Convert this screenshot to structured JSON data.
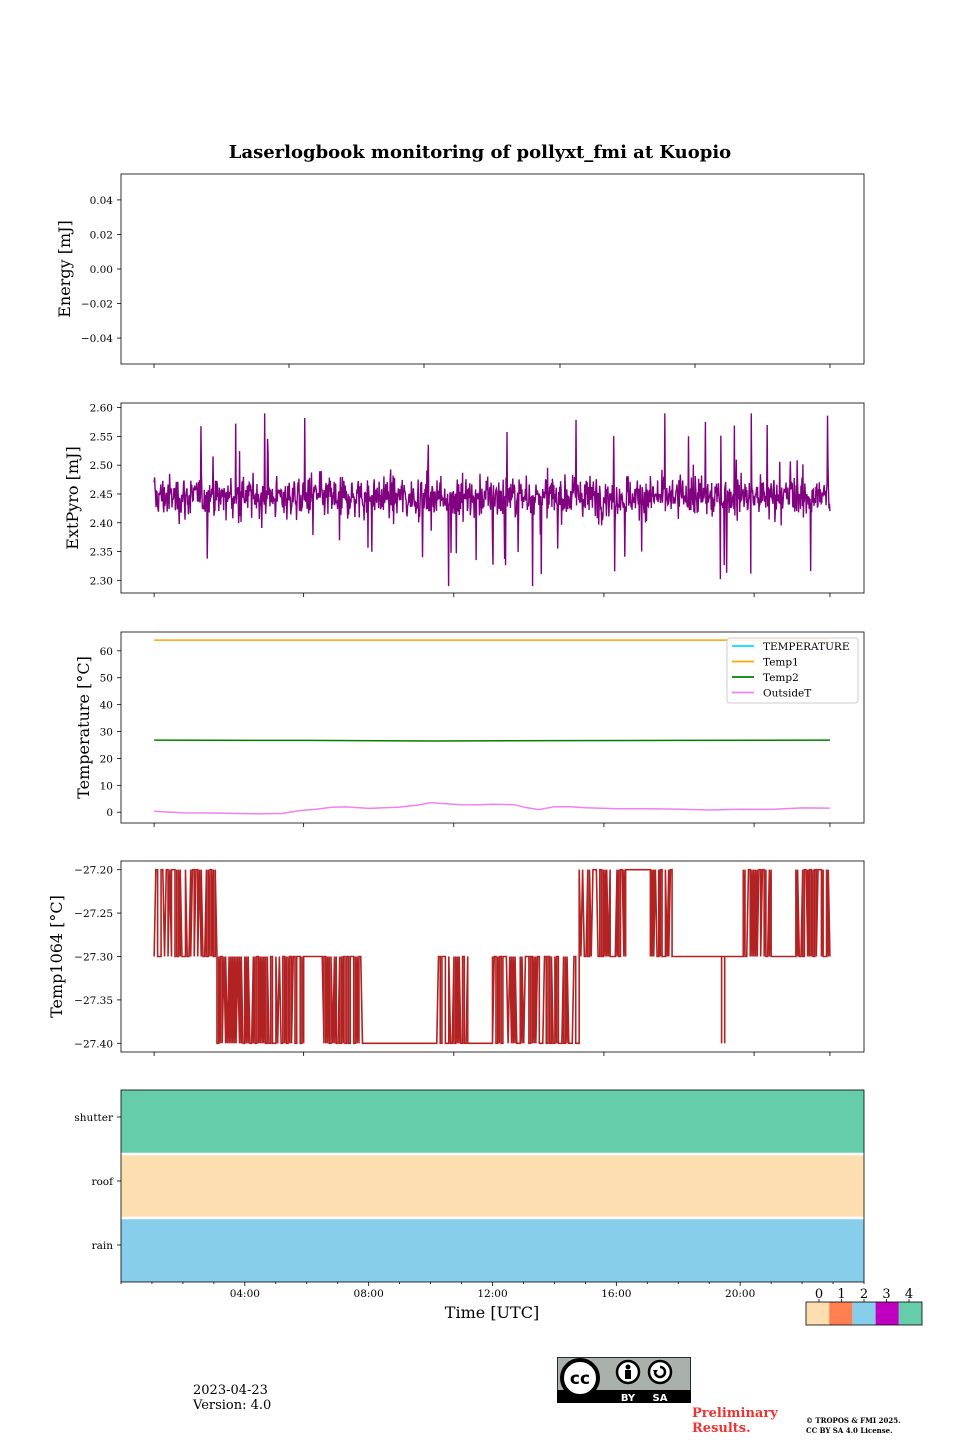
{
  "chart_data": {
    "title": "Laserlogbook monitoring of pollyxt_fmi at Kuopio",
    "xlabel": "Time [UTC]",
    "x_range_hours": [
      0,
      24
    ],
    "x_ticks": [
      "04:00",
      "08:00",
      "12:00",
      "16:00",
      "20:00"
    ],
    "panels": [
      {
        "id": "energy",
        "type": "line",
        "ylabel": "Energy [mJ]",
        "ylim": [
          -0.055,
          0.055
        ],
        "yticks": [
          0.04,
          0.02,
          0.0,
          -0.02,
          -0.04
        ],
        "ytick_labels": [
          "0.04",
          "0.02",
          "0.00",
          "−0.02",
          "−0.04"
        ],
        "series": []
      },
      {
        "id": "extpyro",
        "type": "line",
        "ylabel": "ExtPyro [mJ]",
        "ylim": [
          2.278,
          2.608
        ],
        "yticks": [
          2.6,
          2.55,
          2.5,
          2.45,
          2.4,
          2.35,
          2.3
        ],
        "ytick_labels": [
          "2.60",
          "2.55",
          "2.50",
          "2.45",
          "2.40",
          "2.35",
          "2.30"
        ],
        "series": [
          {
            "name": "ExtPyro",
            "color": "#800080",
            "kind": "noisy",
            "t_start": 1.07,
            "t_end": 22.9,
            "mean": 2.445,
            "sd": 0.035,
            "min": 2.29,
            "max": 2.59
          }
        ]
      },
      {
        "id": "temperature",
        "type": "line",
        "ylabel": "Temperature [°C]",
        "ylim": [
          -4,
          67
        ],
        "yticks": [
          60,
          50,
          40,
          30,
          20,
          10,
          0
        ],
        "ytick_labels": [
          "60",
          "50",
          "40",
          "30",
          "20",
          "10",
          "0"
        ],
        "legend_position": "upper right",
        "series": [
          {
            "name": "TEMPERATURE",
            "color": "#00e5ee",
            "points": []
          },
          {
            "name": "Temp1",
            "color": "#ffa500",
            "points": [
              [
                1.07,
                64
              ],
              [
                22.9,
                64
              ]
            ]
          },
          {
            "name": "Temp2",
            "color": "#008000",
            "points": [
              [
                1.07,
                26.8
              ],
              [
                6,
                26.7
              ],
              [
                10,
                26.5
              ],
              [
                14,
                26.6
              ],
              [
                18,
                26.7
              ],
              [
                22.9,
                26.8
              ]
            ]
          },
          {
            "name": "OutsideT",
            "color": "#ee82ee",
            "points": [
              [
                1.07,
                0.3
              ],
              [
                2,
                -0.1
              ],
              [
                3,
                -0.3
              ],
              [
                4,
                -0.5
              ],
              [
                4.5,
                -0.7
              ],
              [
                5.2,
                -0.3
              ],
              [
                5.8,
                0.7
              ],
              [
                6.3,
                0.9
              ],
              [
                6.8,
                1.6
              ],
              [
                7.3,
                2.1
              ],
              [
                8,
                1.5
              ],
              [
                9,
                1.9
              ],
              [
                9.6,
                2.6
              ],
              [
                10,
                3.3
              ],
              [
                10.5,
                3.1
              ],
              [
                11,
                2.6
              ],
              [
                11.5,
                2.8
              ],
              [
                12,
                2.9
              ],
              [
                12.7,
                2.6
              ],
              [
                13.1,
                1.7
              ],
              [
                13.5,
                1.1
              ],
              [
                14,
                1.8
              ],
              [
                14.5,
                2.1
              ],
              [
                15,
                1.7
              ],
              [
                16,
                1.3
              ],
              [
                17,
                1.2
              ],
              [
                18,
                1.1
              ],
              [
                19,
                1.0
              ],
              [
                20,
                0.9
              ],
              [
                21,
                1.1
              ],
              [
                22,
                1.4
              ],
              [
                22.9,
                1.5
              ]
            ]
          }
        ]
      },
      {
        "id": "temp1064",
        "type": "line",
        "ylabel": "Temp1064 [°C]",
        "ylim": [
          -27.41,
          -27.19
        ],
        "yticks": [
          -27.2,
          -27.25,
          -27.3,
          -27.35,
          -27.4
        ],
        "ytick_labels": [
          "−27.20",
          "−27.25",
          "−27.30",
          "−27.35",
          "−27.40"
        ],
        "series": [
          {
            "name": "Temp1064",
            "color": "#b22222",
            "kind": "steps",
            "t_start": 1.07,
            "t_end": 22.9,
            "segments": [
              [
                1.07,
                1.8,
                -27.3,
                -27.2
              ],
              [
                1.8,
                3.1,
                -27.3,
                -27.2
              ],
              [
                3.1,
                5.9,
                -27.3,
                -27.4
              ],
              [
                5.9,
                6.5,
                -27.3,
                -27.3
              ],
              [
                6.5,
                7.8,
                -27.3,
                -27.4
              ],
              [
                7.8,
                10.2,
                -27.4,
                -27.4
              ],
              [
                10.2,
                11.2,
                -27.4,
                -27.3
              ],
              [
                11.2,
                12.0,
                -27.4,
                -27.4
              ],
              [
                12.0,
                14.8,
                -27.3,
                -27.4
              ],
              [
                14.8,
                16.3,
                -27.3,
                -27.2
              ],
              [
                16.3,
                17.1,
                -27.2,
                -27.2
              ],
              [
                17.1,
                17.8,
                -27.3,
                -27.2
              ],
              [
                17.8,
                20.1,
                -27.3,
                -27.3
              ],
              [
                20.1,
                21.0,
                -27.3,
                -27.2
              ],
              [
                21.0,
                21.8,
                -27.3,
                -27.3
              ],
              [
                21.8,
                22.9,
                -27.3,
                -27.2
              ]
            ],
            "spikes": [
              19.4,
              19.5
            ]
          }
        ]
      },
      {
        "id": "status",
        "type": "heatmap",
        "rows": [
          {
            "label": "shutter",
            "value": 4
          },
          {
            "label": "roof",
            "value": 0
          },
          {
            "label": "rain",
            "value": 2
          }
        ]
      }
    ],
    "colorbar": {
      "tick_labels": [
        "0",
        "1",
        "2",
        "3",
        "4"
      ],
      "colors": [
        "#fddeb0",
        "#ff7f50",
        "#87ceeb",
        "#c000c0",
        "#66cdaa"
      ]
    }
  },
  "footer": {
    "date": "2023-04-23",
    "version": "Version: 4.0",
    "preliminary": "Preliminary Results.",
    "copyright_line1": "© TROPOS & FMI 2025.",
    "copyright_line2": "CC BY SA 4.0 License.",
    "license_badge": {
      "cc": "cc",
      "by": "BY",
      "sa": "SA"
    }
  }
}
